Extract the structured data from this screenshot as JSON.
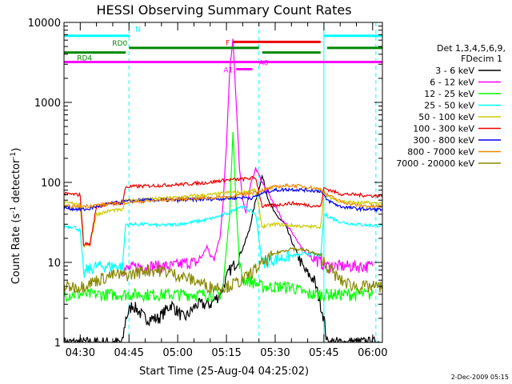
{
  "chart_data": {
    "type": "line",
    "title": "HESSI Observing Summary Count Rates",
    "xlabel": "Start Time (25-Aug-04 04:25:02)",
    "ylabel_main": "Count Rate (s",
    "ylabel_sup1": "-1",
    "ylabel_mid": " detector",
    "ylabel_sup2": "-1",
    "ylabel_end": ")",
    "footer": "2-Dec-2009 05:15",
    "y_scale": "log",
    "ylim": [
      1,
      10000
    ],
    "xlim_minutes": [
      265,
      363
    ],
    "x_ticks": [
      {
        "label": "04:30",
        "m": 270
      },
      {
        "label": "04:45",
        "m": 285
      },
      {
        "label": "05:00",
        "m": 300
      },
      {
        "label": "05:15",
        "m": 315
      },
      {
        "label": "05:30",
        "m": 330
      },
      {
        "label": "05:45",
        "m": 345
      },
      {
        "label": "06:00",
        "m": 360
      }
    ],
    "y_ticks": [
      {
        "label": "1",
        "v": 1
      },
      {
        "label": "10",
        "v": 10
      },
      {
        "label": "100",
        "v": 100
      },
      {
        "label": "1000",
        "v": 1000
      },
      {
        "label": "10000",
        "v": 10000
      }
    ],
    "legend_title1": "Det 1,3,4,5,6,9,",
    "legend_title2": "FDecim 1",
    "legend_position": "right",
    "series": [
      {
        "name": "3 - 6 keV",
        "color": "#000000",
        "points": [
          [
            265,
            1
          ],
          [
            283,
            1
          ],
          [
            284,
            2
          ],
          [
            286,
            3
          ],
          [
            290,
            2
          ],
          [
            294,
            2
          ],
          [
            298,
            3
          ],
          [
            302,
            2
          ],
          [
            306,
            3
          ],
          [
            310,
            3
          ],
          [
            313,
            4
          ],
          [
            316,
            8
          ],
          [
            318,
            10
          ],
          [
            320,
            15
          ],
          [
            322,
            25
          ],
          [
            324,
            60
          ],
          [
            326,
            120
          ],
          [
            328,
            60
          ],
          [
            330,
            40
          ],
          [
            333,
            30
          ],
          [
            336,
            15
          ],
          [
            339,
            8
          ],
          [
            342,
            6
          ],
          [
            344,
            3
          ],
          [
            345,
            2
          ],
          [
            346,
            1
          ],
          [
            363,
            1
          ]
        ]
      },
      {
        "name": "6 - 12 keV",
        "color": "#ff00ff",
        "points": [
          [
            283,
            8
          ],
          [
            288,
            9
          ],
          [
            293,
            9
          ],
          [
            298,
            9
          ],
          [
            303,
            10
          ],
          [
            306,
            10
          ],
          [
            308,
            13
          ],
          [
            309,
            16
          ],
          [
            310,
            12
          ],
          [
            311,
            11
          ],
          [
            313,
            20
          ],
          [
            314,
            60
          ],
          [
            315,
            300
          ],
          [
            316,
            2500
          ],
          [
            317,
            6500
          ],
          [
            318,
            1000
          ],
          [
            319,
            150
          ],
          [
            320,
            60
          ],
          [
            321,
            40
          ],
          [
            322,
            80
          ],
          [
            324,
            150
          ],
          [
            326,
            100
          ],
          [
            329,
            60
          ],
          [
            332,
            35
          ],
          [
            335,
            25
          ],
          [
            338,
            15
          ],
          [
            341,
            12
          ],
          [
            344,
            10
          ],
          [
            346,
            9
          ],
          [
            350,
            9
          ],
          [
            355,
            9
          ],
          [
            360,
            9
          ]
        ]
      },
      {
        "name": "12 - 25 keV",
        "color": "#00ff00",
        "points": [
          [
            265,
            4
          ],
          [
            275,
            4
          ],
          [
            285,
            4
          ],
          [
            295,
            4
          ],
          [
            305,
            4
          ],
          [
            310,
            4
          ],
          [
            313,
            4
          ],
          [
            314,
            5
          ],
          [
            315,
            15
          ],
          [
            316,
            40
          ],
          [
            317,
            450
          ],
          [
            318,
            50
          ],
          [
            319,
            10
          ],
          [
            320,
            6
          ],
          [
            322,
            6
          ],
          [
            326,
            5
          ],
          [
            330,
            5
          ],
          [
            335,
            5
          ],
          [
            340,
            4
          ],
          [
            345,
            4
          ],
          [
            350,
            4
          ],
          [
            360,
            4
          ]
        ]
      },
      {
        "name": "25 - 50 keV",
        "color": "#00ffff",
        "points": [
          [
            265,
            28
          ],
          [
            268,
            28
          ],
          [
            270,
            25
          ],
          [
            271,
            7
          ],
          [
            272,
            8
          ],
          [
            275,
            9
          ],
          [
            283,
            9
          ],
          [
            284,
            30
          ],
          [
            290,
            30
          ],
          [
            295,
            29
          ],
          [
            300,
            30
          ],
          [
            305,
            32
          ],
          [
            310,
            35
          ],
          [
            313,
            38
          ],
          [
            316,
            42
          ],
          [
            318,
            48
          ],
          [
            320,
            50
          ],
          [
            322,
            45
          ],
          [
            324,
            40
          ],
          [
            326,
            10
          ],
          [
            330,
            11
          ],
          [
            335,
            12
          ],
          [
            340,
            13
          ],
          [
            344,
            12
          ],
          [
            345,
            40
          ],
          [
            350,
            32
          ],
          [
            355,
            30
          ],
          [
            360,
            29
          ],
          [
            363,
            29
          ]
        ]
      },
      {
        "name": "50 - 100 keV",
        "color": "#cccc00",
        "points": [
          [
            265,
            55
          ],
          [
            270,
            55
          ],
          [
            271,
            16
          ],
          [
            273,
            17
          ],
          [
            275,
            40
          ],
          [
            280,
            45
          ],
          [
            283,
            45
          ],
          [
            284,
            60
          ],
          [
            290,
            62
          ],
          [
            295,
            63
          ],
          [
            300,
            65
          ],
          [
            305,
            68
          ],
          [
            310,
            70
          ],
          [
            313,
            72
          ],
          [
            316,
            75
          ],
          [
            320,
            75
          ],
          [
            322,
            78
          ],
          [
            324,
            80
          ],
          [
            326,
            28
          ],
          [
            330,
            30
          ],
          [
            335,
            29
          ],
          [
            340,
            28
          ],
          [
            344,
            28
          ],
          [
            345,
            70
          ],
          [
            350,
            58
          ],
          [
            355,
            56
          ],
          [
            360,
            55
          ],
          [
            363,
            55
          ]
        ]
      },
      {
        "name": "100 - 300 keV",
        "color": "#ee0000",
        "points": [
          [
            265,
            72
          ],
          [
            270,
            70
          ],
          [
            271,
            17
          ],
          [
            273,
            17
          ],
          [
            275,
            50
          ],
          [
            280,
            55
          ],
          [
            283,
            55
          ],
          [
            284,
            88
          ],
          [
            290,
            90
          ],
          [
            295,
            92
          ],
          [
            300,
            94
          ],
          [
            305,
            97
          ],
          [
            310,
            100
          ],
          [
            313,
            105
          ],
          [
            316,
            108
          ],
          [
            320,
            110
          ],
          [
            322,
            112
          ],
          [
            324,
            115
          ],
          [
            326,
            50
          ],
          [
            330,
            52
          ],
          [
            335,
            55
          ],
          [
            340,
            52
          ],
          [
            344,
            50
          ],
          [
            345,
            85
          ],
          [
            350,
            72
          ],
          [
            355,
            70
          ],
          [
            360,
            68
          ],
          [
            363,
            68
          ]
        ]
      },
      {
        "name": "300 - 800 keV",
        "color": "#0000ee",
        "points": [
          [
            265,
            48
          ],
          [
            270,
            46
          ],
          [
            272,
            46
          ],
          [
            275,
            50
          ],
          [
            280,
            55
          ],
          [
            285,
            58
          ],
          [
            290,
            60
          ],
          [
            295,
            60
          ],
          [
            300,
            60
          ],
          [
            305,
            61
          ],
          [
            310,
            62
          ],
          [
            315,
            63
          ],
          [
            320,
            65
          ],
          [
            323,
            64
          ],
          [
            325,
            70
          ],
          [
            328,
            78
          ],
          [
            330,
            80
          ],
          [
            335,
            82
          ],
          [
            340,
            80
          ],
          [
            344,
            78
          ],
          [
            346,
            60
          ],
          [
            350,
            50
          ],
          [
            355,
            47
          ],
          [
            360,
            46
          ],
          [
            363,
            46
          ]
        ]
      },
      {
        "name": "800 - 7000 keV",
        "color": "#ee8800",
        "points": [
          [
            265,
            50
          ],
          [
            270,
            50
          ],
          [
            275,
            52
          ],
          [
            280,
            54
          ],
          [
            285,
            57
          ],
          [
            290,
            58
          ],
          [
            295,
            60
          ],
          [
            300,
            62
          ],
          [
            305,
            63
          ],
          [
            310,
            64
          ],
          [
            315,
            66
          ],
          [
            320,
            70
          ],
          [
            325,
            78
          ],
          [
            330,
            88
          ],
          [
            335,
            92
          ],
          [
            340,
            88
          ],
          [
            344,
            82
          ],
          [
            346,
            70
          ],
          [
            350,
            58
          ],
          [
            355,
            52
          ],
          [
            360,
            50
          ],
          [
            363,
            50
          ]
        ]
      },
      {
        "name": "7000 - 20000 keV",
        "color": "#888800",
        "points": [
          [
            265,
            5
          ],
          [
            270,
            5
          ],
          [
            275,
            6
          ],
          [
            280,
            7
          ],
          [
            285,
            7
          ],
          [
            290,
            8
          ],
          [
            295,
            8
          ],
          [
            300,
            7
          ],
          [
            305,
            6
          ],
          [
            310,
            5
          ],
          [
            315,
            5
          ],
          [
            320,
            6
          ],
          [
            325,
            9
          ],
          [
            330,
            13
          ],
          [
            335,
            15
          ],
          [
            340,
            14
          ],
          [
            344,
            12
          ],
          [
            346,
            9
          ],
          [
            350,
            6
          ],
          [
            355,
            5
          ],
          [
            360,
            5
          ],
          [
            363,
            5
          ]
        ]
      }
    ],
    "flag_bars": [
      {
        "name": "N",
        "color": "#00ffff",
        "level": 6800,
        "segments": [
          [
            265,
            285
          ],
          [
            345,
            363
          ]
        ]
      },
      {
        "name": "F",
        "color": "#ee0000",
        "level": 5700,
        "segments": [
          [
            317,
            344
          ]
        ]
      },
      {
        "name": "RD0",
        "color": "#008800",
        "level": 4800,
        "segments": [
          [
            285,
            325
          ],
          [
            346,
            363
          ]
        ]
      },
      {
        "name": "RD4",
        "color": "#008800",
        "level": 4200,
        "segments": [
          [
            265,
            284
          ],
          [
            326,
            344
          ]
        ]
      },
      {
        "name": "A0",
        "color": "#ff00ff",
        "level": 3200,
        "segments": [
          [
            265,
            363
          ]
        ]
      },
      {
        "name": "A1",
        "color": "#ff00ff",
        "level": 2600,
        "segments": [
          [
            318,
            323
          ]
        ]
      }
    ],
    "vlines": [
      {
        "m": 265,
        "color": "#00ffff",
        "style": "solid"
      },
      {
        "m": 285,
        "color": "#00ffff",
        "style": "dashed"
      },
      {
        "m": 345,
        "color": "#00ffff",
        "style": "solid"
      },
      {
        "m": 361,
        "color": "#00ffff",
        "style": "dashed"
      },
      {
        "m": 325,
        "color": "#00ffff",
        "style": "dashed"
      }
    ]
  }
}
